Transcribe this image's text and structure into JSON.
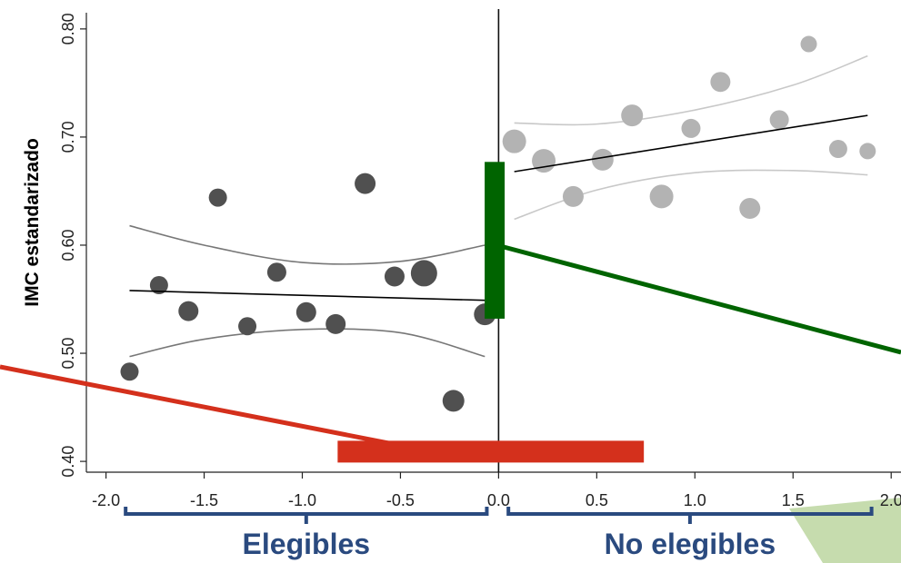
{
  "chart_data": {
    "type": "scatter",
    "ylabel": "IMC estandarizado",
    "xlim": [
      -2.1,
      2.05
    ],
    "ylim": [
      0.39,
      0.815
    ],
    "x_ticks": [
      {
        "value": -2.0,
        "label": "-2.0"
      },
      {
        "value": -1.5,
        "label": "-1.5"
      },
      {
        "value": -1.0,
        "label": "-1.0"
      },
      {
        "value": -0.5,
        "label": "-0.5"
      },
      {
        "value": 0.0,
        "label": "0.0"
      },
      {
        "value": 0.5,
        "label": "0.5"
      },
      {
        "value": 1.0,
        "label": "1.0"
      },
      {
        "value": 1.5,
        "label": "1.5"
      },
      {
        "value": 2.0,
        "label": "2.0"
      }
    ],
    "y_ticks": [
      {
        "value": 0.4,
        "label": "0.40"
      },
      {
        "value": 0.5,
        "label": "0.50"
      },
      {
        "value": 0.6,
        "label": "0.60"
      },
      {
        "value": 0.7,
        "label": "0.70"
      },
      {
        "value": 0.8,
        "label": "0.80"
      }
    ],
    "cutoff_x": 0.0,
    "series": [
      {
        "group": "elegibles",
        "color": "#505050",
        "points": [
          {
            "x": -1.88,
            "y": 0.483,
            "size": 1.0
          },
          {
            "x": -1.73,
            "y": 0.563,
            "size": 1.0
          },
          {
            "x": -1.58,
            "y": 0.539,
            "size": 1.1
          },
          {
            "x": -1.43,
            "y": 0.644,
            "size": 1.0
          },
          {
            "x": -1.28,
            "y": 0.525,
            "size": 1.0
          },
          {
            "x": -1.13,
            "y": 0.575,
            "size": 1.05
          },
          {
            "x": -0.98,
            "y": 0.538,
            "size": 1.1
          },
          {
            "x": -0.83,
            "y": 0.527,
            "size": 1.1
          },
          {
            "x": -0.68,
            "y": 0.657,
            "size": 1.15
          },
          {
            "x": -0.53,
            "y": 0.571,
            "size": 1.1
          },
          {
            "x": -0.38,
            "y": 0.574,
            "size": 1.45
          },
          {
            "x": -0.23,
            "y": 0.456,
            "size": 1.2
          },
          {
            "x": -0.07,
            "y": 0.536,
            "size": 1.2
          }
        ],
        "fit": {
          "x": [
            -1.88,
            -0.07
          ],
          "y": [
            0.558,
            0.549
          ],
          "color": "#000000"
        },
        "ci_upper": {
          "x": [
            -1.88,
            -1.5,
            -1.0,
            -0.5,
            -0.07
          ],
          "y": [
            0.618,
            0.6,
            0.584,
            0.585,
            0.6
          ],
          "color": "#777777"
        },
        "ci_lower": {
          "x": [
            -1.88,
            -1.5,
            -1.0,
            -0.5,
            -0.07
          ],
          "y": [
            0.497,
            0.513,
            0.522,
            0.519,
            0.497
          ],
          "color": "#777777"
        }
      },
      {
        "group": "no_elegibles",
        "color": "#b3b3b3",
        "points": [
          {
            "x": 0.08,
            "y": 0.696,
            "size": 1.3
          },
          {
            "x": 0.23,
            "y": 0.678,
            "size": 1.3
          },
          {
            "x": 0.38,
            "y": 0.645,
            "size": 1.15
          },
          {
            "x": 0.53,
            "y": 0.679,
            "size": 1.2
          },
          {
            "x": 0.68,
            "y": 0.72,
            "size": 1.2
          },
          {
            "x": 0.83,
            "y": 0.645,
            "size": 1.3
          },
          {
            "x": 0.98,
            "y": 0.708,
            "size": 1.05
          },
          {
            "x": 1.13,
            "y": 0.751,
            "size": 1.1
          },
          {
            "x": 1.28,
            "y": 0.634,
            "size": 1.15
          },
          {
            "x": 1.43,
            "y": 0.716,
            "size": 1.05
          },
          {
            "x": 1.58,
            "y": 0.786,
            "size": 0.9
          },
          {
            "x": 1.73,
            "y": 0.689,
            "size": 1.0
          },
          {
            "x": 1.88,
            "y": 0.687,
            "size": 0.9
          }
        ],
        "fit": {
          "x": [
            0.08,
            1.88
          ],
          "y": [
            0.668,
            0.72
          ],
          "color": "#000000"
        },
        "ci_upper": {
          "x": [
            0.08,
            0.5,
            1.0,
            1.5,
            1.88
          ],
          "y": [
            0.713,
            0.712,
            0.725,
            0.748,
            0.775
          ],
          "color": "#c8c8c8"
        },
        "ci_lower": {
          "x": [
            0.08,
            0.5,
            1.0,
            1.5,
            1.88
          ],
          "y": [
            0.624,
            0.651,
            0.667,
            0.669,
            0.665
          ],
          "color": "#c8c8c8"
        }
      }
    ],
    "annotations": {
      "green_bar": {
        "x": -0.02,
        "y_from": 0.532,
        "y_to": 0.677,
        "color": "#006400"
      },
      "red_bar": {
        "x_from": -0.82,
        "x_to": 0.74,
        "y": 0.409,
        "color": "#d4301c"
      }
    },
    "groups": [
      {
        "label": "Elegibles",
        "x_from": -1.9,
        "x_to": -0.06,
        "color": "#2a4a7f"
      },
      {
        "label": "No elegibles",
        "x_from": 0.05,
        "x_to": 1.9,
        "color": "#2a4a7f"
      }
    ],
    "grid": false
  }
}
